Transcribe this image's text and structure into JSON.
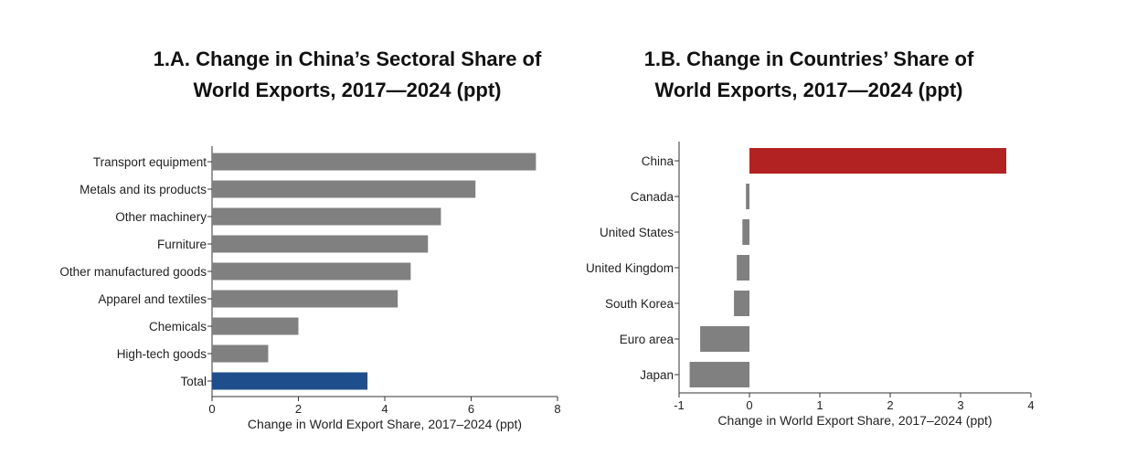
{
  "chart_data": [
    {
      "type": "bar",
      "orientation": "horizontal",
      "title_line1": "1.A. Change in China’s Sectoral Share of",
      "title_line2": "World Exports, 2017—2024 (ppt)",
      "xlabel": "Change in World Export Share, 2017–2024 (ppt)",
      "ylabel": "",
      "xlim": [
        0,
        8
      ],
      "xticks": [
        0,
        2,
        4,
        6,
        8
      ],
      "categories": [
        "Transport equipment",
        "Metals and its products",
        "Other machinery",
        "Furniture",
        "Other manufactured goods",
        "Apparel and textiles",
        "Chemicals",
        "High-tech goods",
        "Total"
      ],
      "values": [
        7.5,
        6.1,
        5.3,
        5.0,
        4.6,
        4.3,
        2.0,
        1.3,
        3.6
      ],
      "colors": [
        "#808080",
        "#808080",
        "#808080",
        "#808080",
        "#808080",
        "#808080",
        "#808080",
        "#808080",
        "#1f4e8c"
      ],
      "grid": false
    },
    {
      "type": "bar",
      "orientation": "horizontal",
      "title_line1": "1.B. Change in Countries’ Share of",
      "title_line2": "World Exports, 2017—2024 (ppt)",
      "xlabel": "Change in World Export Share, 2017–2024 (ppt)",
      "ylabel": "",
      "xlim": [
        -1,
        4
      ],
      "xticks": [
        -1,
        0,
        1,
        2,
        3,
        4
      ],
      "categories": [
        "China",
        "Canada",
        "United States",
        "United Kingdom",
        "South Korea",
        "Euro area",
        "Japan"
      ],
      "values": [
        3.65,
        -0.05,
        -0.1,
        -0.18,
        -0.22,
        -0.7,
        -0.85
      ],
      "colors": [
        "#b22222",
        "#808080",
        "#808080",
        "#808080",
        "#808080",
        "#808080",
        "#808080"
      ],
      "grid": false
    }
  ]
}
